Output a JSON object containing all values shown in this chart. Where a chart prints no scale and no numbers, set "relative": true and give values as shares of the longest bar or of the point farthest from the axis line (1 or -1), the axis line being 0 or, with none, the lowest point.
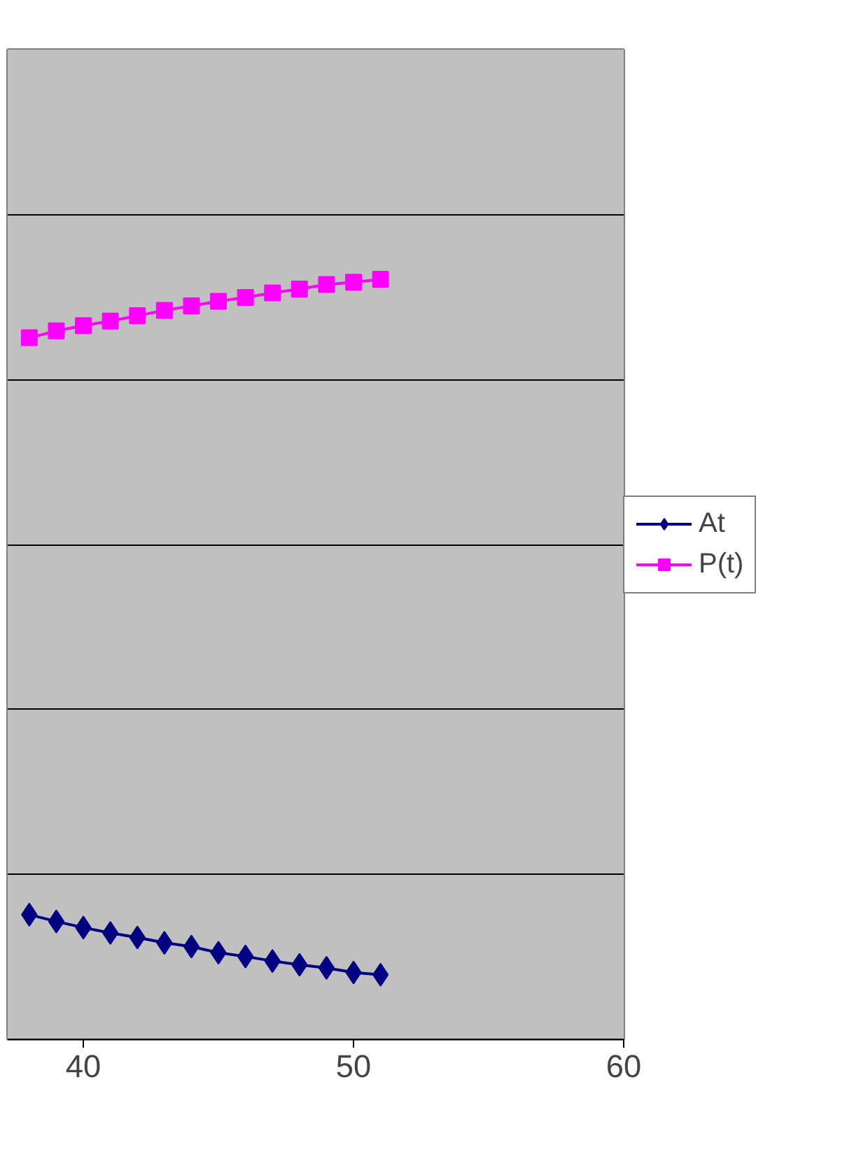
{
  "chart_data": {
    "type": "line",
    "relative": true,
    "x": [
      38,
      39,
      40,
      41,
      42,
      43,
      44,
      45,
      46,
      47,
      48,
      49,
      50,
      51
    ],
    "xlim": [
      37.2,
      60
    ],
    "xticks": [
      40,
      50,
      60
    ],
    "grid": "y",
    "legend": "right",
    "tick_labels": "x",
    "series": [
      {
        "name": "At",
        "color": "#000080",
        "marker": "diamond",
        "values": [
          0.164,
          0.155,
          0.147,
          0.14,
          0.134,
          0.127,
          0.122,
          0.114,
          0.109,
          0.103,
          0.098,
          0.094,
          0.088,
          0.085
        ]
      },
      {
        "name": "P(t)",
        "color": "#ff00ff",
        "marker": "square",
        "values": [
          0.923,
          0.932,
          0.939,
          0.945,
          0.952,
          0.959,
          0.965,
          0.971,
          0.976,
          0.982,
          0.987,
          0.993,
          0.996,
          1
        ]
      }
    ]
  }
}
